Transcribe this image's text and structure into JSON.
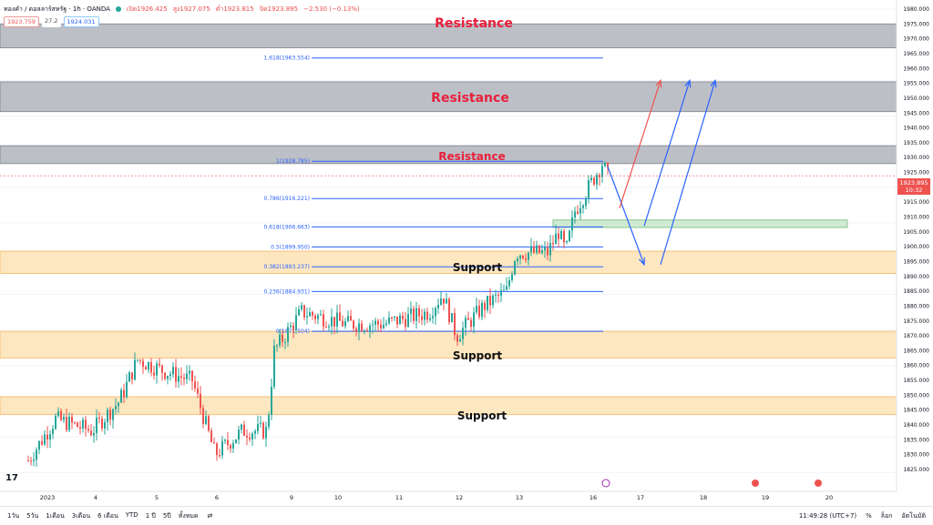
{
  "header": {
    "symbol": "ทองคำ / ดอลลาร์สหรัฐ · 1h · OANDA",
    "open": "เปิด1926.425",
    "high": "สูง1927.075",
    "low": "ต่ำ1923.815",
    "close": "ปิด1923.895",
    "change": "−2.530 (−0.13%)",
    "sell_price": "1923.759",
    "spread": "27.2",
    "buy_price": "1924.031"
  },
  "zones": {
    "resistance_label": "Resistance",
    "support_label": "Support"
  },
  "fib_levels": [
    {
      "label": "1.618(1963.554)",
      "value": 1963.554
    },
    {
      "label": "1(1928.785)",
      "value": 1928.785
    },
    {
      "label": "0.786(1916.221)",
      "value": 1916.221
    },
    {
      "label": "0.618(1906.663)",
      "value": 1906.663
    },
    {
      "label": "0.5(1899.950)",
      "value": 1899.95
    },
    {
      "label": "0.382(1893.237)",
      "value": 1893.237
    },
    {
      "label": "0.236(1884.931)",
      "value": 1884.931
    },
    {
      "label": "0(1871.504)",
      "value": 1871.504
    }
  ],
  "price_axis": {
    "ticks": [
      "1980.000",
      "1975.000",
      "1970.000",
      "1965.000",
      "1960.000",
      "1955.000",
      "1950.000",
      "1945.000",
      "1940.000",
      "1935.000",
      "1930.000",
      "1925.000",
      "1920.000",
      "1915.000",
      "1910.000",
      "1905.000",
      "1900.000",
      "1895.000",
      "1890.000",
      "1885.000",
      "1880.000",
      "1875.000",
      "1870.000",
      "1865.000",
      "1860.000",
      "1855.000",
      "1850.000",
      "1845.000",
      "1840.000",
      "1835.000",
      "1830.000",
      "1825.000"
    ],
    "last_price": "1923.895",
    "countdown": "10:32"
  },
  "time_axis": {
    "ticks": [
      "2023",
      "4",
      "5",
      "6",
      "9",
      "10",
      "11",
      "12",
      "13",
      "16",
      "17",
      "18",
      "19",
      "20"
    ]
  },
  "bottom": {
    "timeframes": [
      "1วัน",
      "5วัน",
      "1เดือน",
      "3เดือน",
      "6 เดือน",
      "YTD",
      "1 ปี",
      "5ปี",
      "ทั้งหมด"
    ],
    "clock": "11:49:28 (UTC+7)",
    "percent": "%",
    "log": "ล็อก",
    "auto": "อัตโนมัติ"
  },
  "colors": {
    "resistance_fill": "#b2b5be",
    "support_fill": "#fde7c0",
    "fib_line": "#2962ff",
    "up_candle": "#26a69a",
    "down_candle": "#ef5350"
  }
}
